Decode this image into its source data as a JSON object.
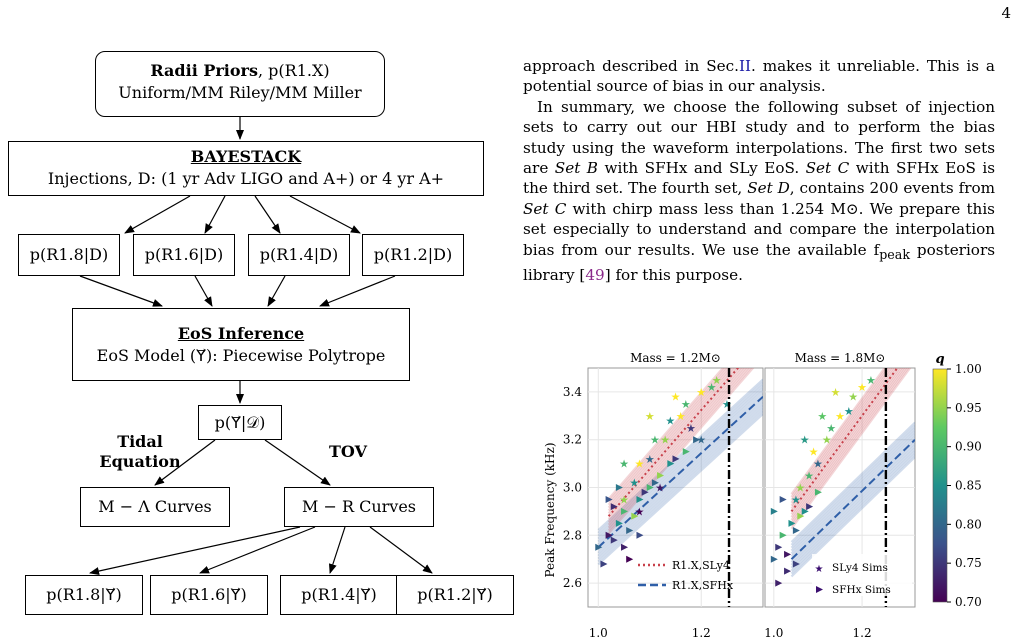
{
  "page_number": "4",
  "flowchart": {
    "radii_priors": {
      "title": "Radii Priors",
      "title_suffix": ", p(R1.X)",
      "line2": "Uniform/MM Riley/MM Miller"
    },
    "bayestack": {
      "title": "BAYESTACK",
      "line2": "Injections, D: (1 yr Adv LIGO and A+) or 4 yr A+"
    },
    "posteriors_D": [
      "p(R1.8|D)",
      "p(R1.6|D)",
      "p(R1.4|D)",
      "p(R1.2|D)"
    ],
    "eos_inference": {
      "title": "EoS Inference",
      "line2": "EoS Model (Υ⃗): Piecewise Polytrope"
    },
    "eos_posterior": "p(Υ⃗|𝒟)",
    "tidal_label": "Tidal Equation",
    "tov_label": "TOV",
    "m_lambda": "M − Λ Curves",
    "m_r": "M − R Curves",
    "posteriors_Y": [
      "p(R1.8|Υ⃗)",
      "p(R1.6|Υ⃗)",
      "p(R1.4|Υ⃗)",
      "p(R1.2|Υ⃗)"
    ]
  },
  "text": {
    "p1": "approach described in Sec.",
    "p1_ref": "II",
    "p1_end": ". makes it unreliable. This is a potential source of bias in our analysis.",
    "p2_a": "In summary, we choose the following subset of injection sets to carry out our HBI study and to perform the bias study using the waveform interpolations. The first two sets are ",
    "set_b": "Set B",
    "p2_b": " with SFHx and SLy EoS. ",
    "set_c": "Set C",
    "p2_c": " with SFHx EoS is the third set. The fourth set, ",
    "set_d": "Set D",
    "p2_d": ", contains 200 events from ",
    "set_c2": "Set C",
    "p2_e": " with chirp mass less than 1.254 M⊙. We prepare this set especially to understand and compare the interpolation bias from our results. We use the available f",
    "peak_sub": "peak",
    "p2_f": " posteriors library [",
    "cite": "49",
    "p2_g": "] for this purpose."
  },
  "chart_data": {
    "type": "scatter",
    "panels": [
      {
        "title": "Mass = 1.2M⊙",
        "vline_x": 1.254,
        "sly_band": {
          "x": [
            1.02,
            1.32
          ],
          "y": [
            2.88,
            3.62
          ]
        },
        "sfhx_band": {
          "x": [
            1.0,
            1.32
          ],
          "y": [
            2.75,
            3.38
          ]
        },
        "sly_points": [
          [
            1.05,
            2.95,
            0.95
          ],
          [
            1.07,
            3.02,
            0.85
          ],
          [
            1.08,
            3.1,
            1.0
          ],
          [
            1.1,
            3.12,
            0.8
          ],
          [
            1.11,
            3.2,
            0.9
          ],
          [
            1.13,
            3.2,
            0.95
          ],
          [
            1.14,
            3.28,
            0.85
          ],
          [
            1.16,
            3.3,
            1.0
          ],
          [
            1.17,
            3.35,
            0.9
          ],
          [
            1.18,
            3.25,
            0.75
          ],
          [
            1.2,
            3.4,
            1.0
          ],
          [
            1.22,
            3.42,
            0.9
          ],
          [
            1.23,
            3.45,
            0.95
          ],
          [
            1.05,
            3.1,
            0.9
          ],
          [
            1.1,
            3.3,
            0.98
          ],
          [
            1.15,
            3.38,
            1.0
          ],
          [
            1.2,
            3.2,
            0.8
          ],
          [
            1.12,
            3.0,
            0.72
          ],
          [
            1.08,
            2.9,
            0.7
          ],
          [
            1.25,
            3.35,
            0.85
          ]
        ],
        "sfhx_points": [
          [
            1.0,
            2.75,
            0.8
          ],
          [
            1.02,
            2.8,
            0.72
          ],
          [
            1.03,
            2.78,
            0.75
          ],
          [
            1.04,
            2.85,
            0.85
          ],
          [
            1.05,
            2.9,
            0.9
          ],
          [
            1.06,
            2.82,
            0.8
          ],
          [
            1.07,
            2.88,
            0.95
          ],
          [
            1.08,
            2.95,
            0.85
          ],
          [
            1.09,
            2.98,
            0.75
          ],
          [
            1.1,
            3.0,
            0.9
          ],
          [
            1.11,
            3.02,
            0.8
          ],
          [
            1.12,
            3.05,
            0.95
          ],
          [
            1.14,
            3.1,
            0.85
          ],
          [
            1.15,
            3.12,
            0.75
          ],
          [
            1.17,
            3.15,
            0.9
          ],
          [
            1.19,
            3.2,
            0.8
          ],
          [
            1.02,
            2.95,
            0.78
          ],
          [
            1.04,
            3.0,
            0.82
          ],
          [
            1.06,
            2.7,
            0.7
          ],
          [
            1.01,
            2.68,
            0.76
          ],
          [
            1.03,
            2.92,
            0.74
          ],
          [
            1.08,
            2.8,
            0.77
          ],
          [
            1.05,
            2.75,
            0.73
          ]
        ]
      },
      {
        "title": "Mass = 1.8M⊙",
        "vline_x": 1.254,
        "sly_band": {
          "x": [
            1.04,
            1.32
          ],
          "y": [
            2.9,
            3.6
          ]
        },
        "sfhx_band": {
          "x": [
            1.04,
            1.32
          ],
          "y": [
            2.7,
            3.2
          ]
        },
        "sly_points": [
          [
            1.05,
            2.95,
            0.85
          ],
          [
            1.06,
            3.0,
            0.95
          ],
          [
            1.08,
            3.05,
            0.9
          ],
          [
            1.09,
            3.15,
            1.0
          ],
          [
            1.1,
            3.1,
            0.8
          ],
          [
            1.12,
            3.2,
            0.95
          ],
          [
            1.13,
            3.25,
            0.9
          ],
          [
            1.15,
            3.3,
            1.0
          ],
          [
            1.17,
            3.32,
            0.85
          ],
          [
            1.18,
            3.38,
            0.95
          ],
          [
            1.2,
            3.42,
            1.0
          ],
          [
            1.22,
            3.45,
            0.9
          ],
          [
            1.11,
            3.3,
            0.92
          ],
          [
            1.14,
            3.4,
            0.98
          ],
          [
            1.07,
            3.2,
            0.86
          ]
        ],
        "sfhx_points": [
          [
            1.0,
            2.7,
            0.8
          ],
          [
            1.01,
            2.75,
            0.75
          ],
          [
            1.02,
            2.8,
            0.9
          ],
          [
            1.03,
            2.72,
            0.72
          ],
          [
            1.04,
            2.85,
            0.85
          ],
          [
            1.05,
            2.82,
            0.8
          ],
          [
            1.06,
            2.88,
            0.95
          ],
          [
            1.07,
            2.9,
            0.85
          ],
          [
            1.08,
            2.92,
            0.75
          ],
          [
            1.1,
            2.98,
            0.9
          ],
          [
            1.02,
            2.95,
            0.78
          ],
          [
            1.0,
            2.9,
            0.83
          ],
          [
            1.03,
            2.65,
            0.74
          ],
          [
            1.05,
            2.68,
            0.76
          ],
          [
            1.01,
            2.6,
            0.73
          ]
        ]
      }
    ],
    "ylabel": "Peak Frequency (kHz)",
    "ylim": [
      2.5,
      3.5
    ],
    "xlim": [
      0.98,
      1.32
    ],
    "yticks": [
      2.6,
      2.8,
      3.0,
      3.2,
      3.4
    ],
    "xticks": [
      1.0,
      1.2
    ],
    "legend_left": [
      "R1.X,SLy4",
      "R1.X,SFHx"
    ],
    "legend_right": [
      "SLy4 Sims",
      "SFHx Sims"
    ],
    "colorbar": {
      "label": "q",
      "ticks": [
        1.0,
        0.95,
        0.9,
        0.85,
        0.8,
        0.75,
        0.7
      ],
      "range": [
        0.7,
        1.0
      ]
    },
    "colors": {
      "sly": "#c8414b",
      "sfhx": "#2f5fa8"
    },
    "grid": true
  }
}
